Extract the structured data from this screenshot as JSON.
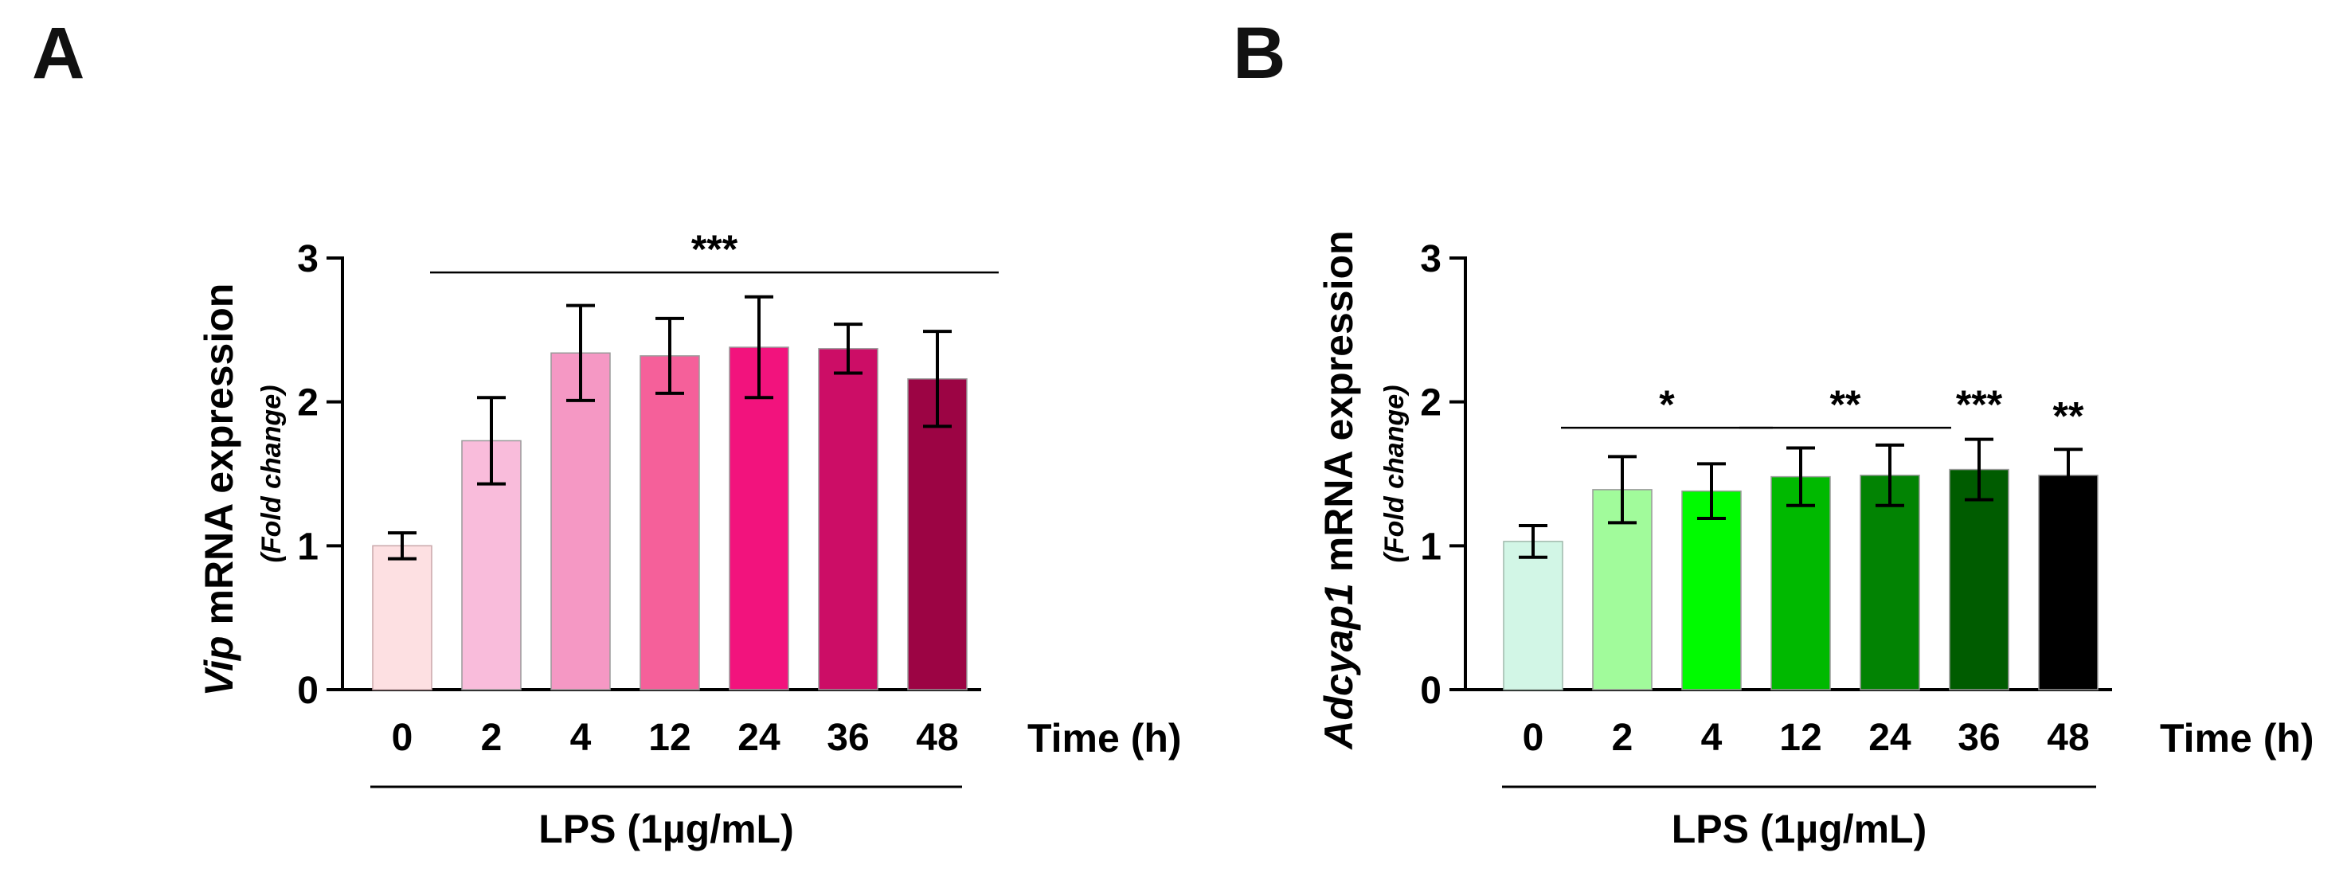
{
  "chart_data": [
    {
      "type": "bar",
      "panel_label": "A",
      "ylabel_gene": "Vip",
      "ylabel_rest": " mRNA expression",
      "ylabel_sub": "(Fold change)",
      "xlabel": "Time (h)",
      "treatment": "LPS (1µg/mL)",
      "ylim": [
        0,
        3
      ],
      "yticks": [
        0,
        1,
        2,
        3
      ],
      "categories": [
        "0",
        "2",
        "4",
        "12",
        "24",
        "36",
        "48"
      ],
      "values": [
        1.0,
        1.73,
        2.34,
        2.32,
        2.38,
        2.37,
        2.16
      ],
      "errors": [
        0.09,
        0.3,
        0.33,
        0.26,
        0.35,
        0.17,
        0.33
      ],
      "colors": [
        "#fde0e2",
        "#f9bcdb",
        "#f598c4",
        "#f5609a",
        "#f2137d",
        "#cc0d66",
        "#9c0444"
      ],
      "significance": [
        {
          "label": "***",
          "from": 1,
          "to": 6,
          "line": true,
          "y": 2.9
        }
      ]
    },
    {
      "type": "bar",
      "panel_label": "B",
      "ylabel_gene": "Adcyap1",
      "ylabel_rest": " mRNA expression",
      "ylabel_sub": "(Fold change)",
      "xlabel": "Time (h)",
      "treatment": "LPS (1µg/mL)",
      "ylim": [
        0,
        3
      ],
      "yticks": [
        0,
        1,
        2,
        3
      ],
      "categories": [
        "0",
        "2",
        "4",
        "12",
        "24",
        "36",
        "48"
      ],
      "values": [
        1.03,
        1.39,
        1.38,
        1.48,
        1.49,
        1.53,
        1.49
      ],
      "errors": [
        0.11,
        0.23,
        0.19,
        0.2,
        0.21,
        0.21,
        0.18
      ],
      "colors": [
        "#d2f6e6",
        "#a1fb9b",
        "#00fb00",
        "#00b900",
        "#028303",
        "#005c00",
        "#000000"
      ],
      "significance": [
        {
          "label": "*",
          "from": 1,
          "to": 2,
          "line": true,
          "y": 1.82
        },
        {
          "label": "**",
          "from": 3,
          "to": 4,
          "line": true,
          "y": 1.82
        },
        {
          "label": "***",
          "from": 5,
          "to": 5,
          "line": false,
          "y": 1.82
        },
        {
          "label": "**",
          "from": 6,
          "to": 6,
          "line": false,
          "y": 1.74
        }
      ]
    }
  ]
}
